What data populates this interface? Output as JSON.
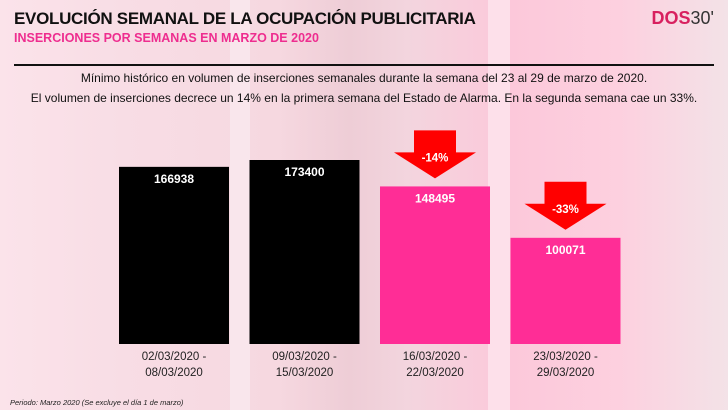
{
  "header": {
    "title": "EVOLUCIÓN SEMANAL DE LA OCUPACIÓN PUBLICITARIA",
    "subtitle": "INSERCIONES POR SEMANAS EN MARZO DE 2020",
    "logo_text": "DOS30'"
  },
  "description": [
    "Mínimo histórico en volumen de inserciones semanales durante la semana del 23 al 29 de marzo de 2020.",
    "El volumen de inserciones decrece un 14% en la primera semana del Estado de Alarma. En la segunda semana cae un 33%."
  ],
  "footnote": "Periodo: Marzo 2020 (Se excluye el día 1 de marzo)",
  "chart_data": {
    "type": "bar",
    "categories": [
      "02/03/2020 - 08/03/2020",
      "09/03/2020 - 15/03/2020",
      "16/03/2020 - 22/03/2020",
      "23/03/2020 - 29/03/2020"
    ],
    "category_lines": [
      [
        "02/03/2020 -",
        "08/03/2020"
      ],
      [
        "09/03/2020 -",
        "15/03/2020"
      ],
      [
        "16/03/2020 -",
        "22/03/2020"
      ],
      [
        "23/03/2020 -",
        "29/03/2020"
      ]
    ],
    "values": [
      166938,
      173400,
      148495,
      100071
    ],
    "bar_colors": [
      "#000000",
      "#000000",
      "#ff2d96",
      "#ff2d96"
    ],
    "annotations": [
      {
        "category_index": 2,
        "label": "-14%"
      },
      {
        "category_index": 3,
        "label": "-33%"
      }
    ],
    "annotation_color": "#ff0000",
    "grid": false,
    "ylim": [
      0,
      173400
    ]
  }
}
